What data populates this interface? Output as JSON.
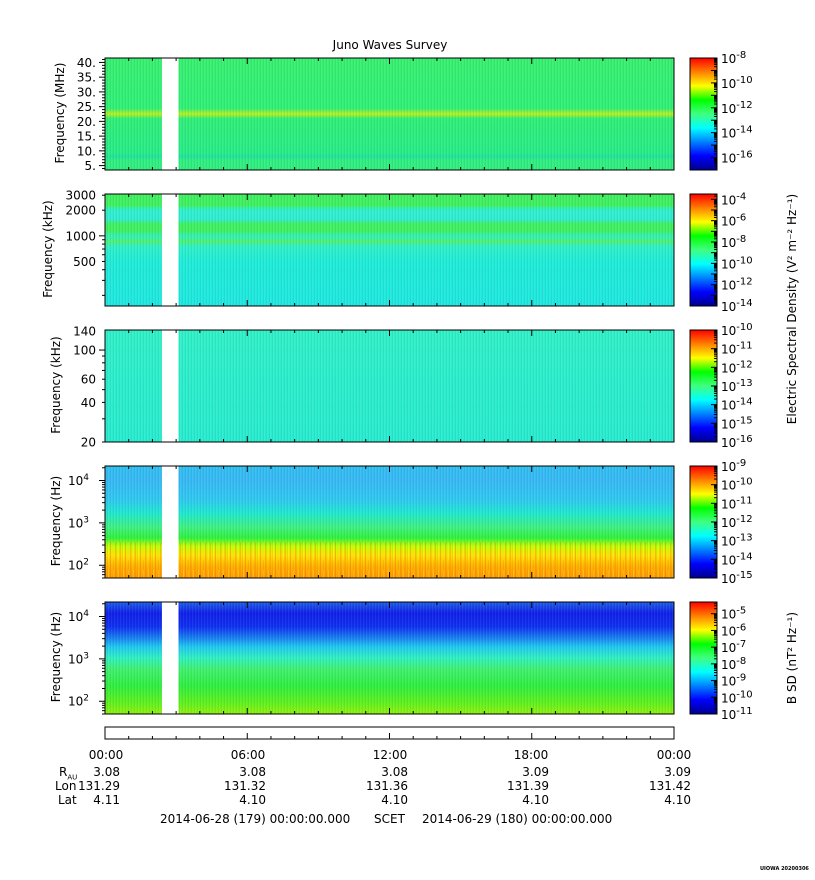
{
  "chart_data": {
    "type": "heatmap",
    "title": "Juno Waves Survey",
    "xaxis": {
      "tick_labels": [
        "00:00",
        "06:00",
        "12:00",
        "18:00",
        "00:00"
      ],
      "start": "2014-06-28 (179) 00:00:00.000",
      "frame": "SCET",
      "end": "2014-06-29 (180) 00:00:00.000"
    },
    "ephemeris": [
      {
        "label": "R",
        "sub": "AU",
        "values": [
          "3.08",
          "3.08",
          "3.08",
          "3.09",
          "3.09"
        ]
      },
      {
        "label": "Lon",
        "sub": "",
        "values": [
          "131.29",
          "131.32",
          "131.36",
          "131.39",
          "131.42"
        ]
      },
      {
        "label": "Lat",
        "sub": "",
        "values": [
          "4.11",
          "4.10",
          "4.10",
          "4.10",
          "4.10"
        ]
      }
    ],
    "data_gap_hours": [
      2.4,
      3.1
    ],
    "panels": [
      {
        "ylabel": "Frequency (MHz)",
        "yscale": "linear",
        "ylim": [
          3.5,
          41.5
        ],
        "yticks": [
          {
            "v": 5,
            "t": "5."
          },
          {
            "v": 10,
            "t": "10."
          },
          {
            "v": 15,
            "t": "15."
          },
          {
            "v": 20,
            "t": "20."
          },
          {
            "v": 25,
            "t": "25."
          },
          {
            "v": 30,
            "t": "30."
          },
          {
            "v": 35,
            "t": "35."
          },
          {
            "v": 40,
            "t": "40."
          }
        ],
        "colorbar": {
          "exp_min": -17,
          "exp_max": -8,
          "tick_exps": [
            "-8",
            "-10",
            "-12",
            "-14",
            "-16"
          ],
          "label": ""
        }
      },
      {
        "ylabel": "Frequency (kHz)",
        "yscale": "log",
        "ylim": [
          150,
          3100
        ],
        "yticks": [
          {
            "v": 500,
            "t": "500"
          },
          {
            "v": 1000,
            "t": "1000"
          },
          {
            "v": 2000,
            "t": "2000"
          },
          {
            "v": 3000,
            "t": "3000"
          }
        ],
        "colorbar": {
          "exp_min": -14,
          "exp_max": -3.5,
          "tick_exps": [
            "-4",
            "-6",
            "-8",
            "-10",
            "-12",
            "-14"
          ],
          "label": ""
        }
      },
      {
        "ylabel": "Frequency (kHz)",
        "yscale": "log",
        "ylim": [
          20,
          142
        ],
        "yticks": [
          {
            "v": 20,
            "t": "20"
          },
          {
            "v": 40,
            "t": "40"
          },
          {
            "v": 60,
            "t": "60"
          },
          {
            "v": 100,
            "t": "100"
          },
          {
            "v": 140,
            "t": "140"
          }
        ],
        "colorbar": {
          "exp_min": -16,
          "exp_max": -10,
          "tick_exps": [
            "-10",
            "-11",
            "-12",
            "-13",
            "-14",
            "-15",
            "-16"
          ],
          "label": "Electric Spectral Density (V² m⁻² Hz⁻¹)"
        }
      },
      {
        "ylabel": "Frequency (Hz)",
        "yscale": "log",
        "ylim": [
          50,
          22000
        ],
        "yticks": [
          {
            "v": 100,
            "t": "10",
            "e": "2"
          },
          {
            "v": 1000,
            "t": "10",
            "e": "3"
          },
          {
            "v": 10000,
            "t": "10",
            "e": "4"
          }
        ],
        "colorbar": {
          "exp_min": -15,
          "exp_max": -9,
          "tick_exps": [
            "-9",
            "-10",
            "-11",
            "-12",
            "-13",
            "-14",
            "-15"
          ],
          "label": ""
        }
      },
      {
        "ylabel": "Frequency (Hz)",
        "yscale": "log",
        "ylim": [
          50,
          22000
        ],
        "yticks": [
          {
            "v": 100,
            "t": "10",
            "e": "2"
          },
          {
            "v": 1000,
            "t": "10",
            "e": "3"
          },
          {
            "v": 10000,
            "t": "10",
            "e": "4"
          }
        ],
        "colorbar": {
          "exp_min": -11,
          "exp_max": -4.3,
          "tick_exps": [
            "-5",
            "-6",
            "-7",
            "-8",
            "-9",
            "-10",
            "-11"
          ],
          "label": "B SD (nT² Hz⁻¹)"
        }
      }
    ]
  },
  "footer": {
    "credit": "UIOWA 20200306"
  }
}
